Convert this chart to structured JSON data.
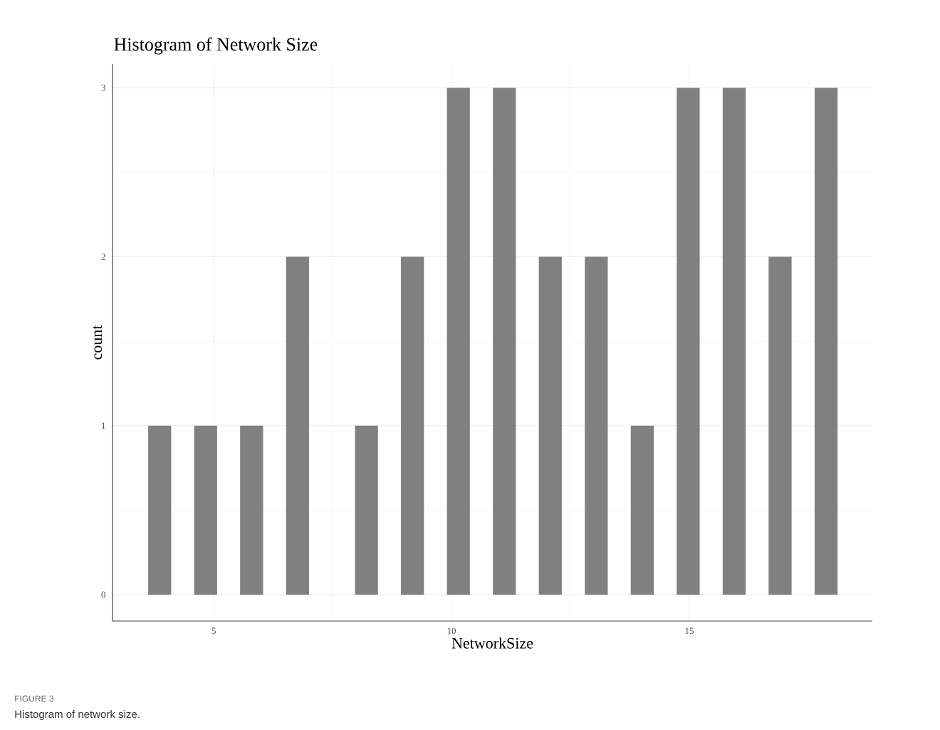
{
  "chart_data": {
    "type": "histogram",
    "title": "Histogram of Network Size",
    "xlabel": "NetworkSize",
    "ylabel": "count",
    "bins": [
      3.62,
      4.1033,
      4.5866,
      5.07,
      5.553,
      6.037,
      6.52,
      7.003,
      7.486,
      7.97,
      8.453,
      8.936,
      9.42,
      9.903,
      10.386,
      10.87,
      11.353,
      11.836,
      12.319,
      12.803,
      13.286,
      13.769,
      14.253,
      14.736,
      15.219,
      15.703,
      16.186,
      16.669,
      17.152,
      17.636,
      18.119
    ],
    "values": [
      1,
      0,
      1,
      0,
      1,
      0,
      2,
      0,
      0,
      1,
      0,
      2,
      0,
      3,
      0,
      3,
      0,
      2,
      0,
      2,
      0,
      1,
      0,
      3,
      0,
      3,
      0,
      2,
      0,
      3
    ],
    "color": "#808080",
    "xlim": [
      2.87,
      18.85
    ],
    "ylim": [
      -0.156,
      3.14
    ],
    "xticks": [
      5,
      10,
      15
    ],
    "yticks": [
      0,
      1,
      2,
      3
    ],
    "grid": true,
    "annotations": [
      "FIGURE 3",
      "Histogram of network size."
    ]
  }
}
